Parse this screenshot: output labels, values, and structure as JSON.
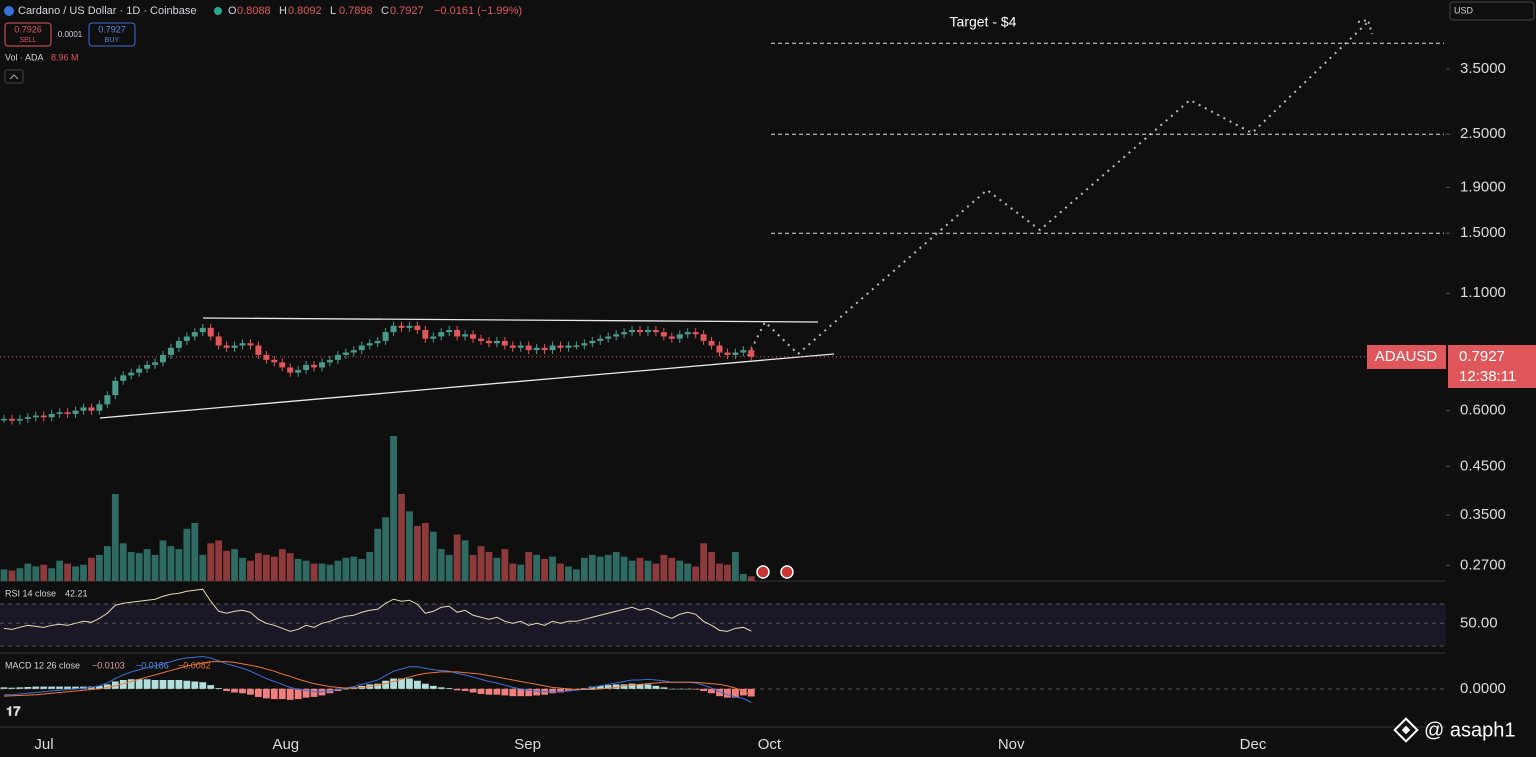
{
  "header": {
    "symbol": "Cardano / US Dollar · 1D · Coinbase",
    "ohlc": [
      {
        "key": "O",
        "value": "0.8088"
      },
      {
        "key": "H",
        "value": "0.8092"
      },
      {
        "key": "L",
        "value": "0.7898"
      },
      {
        "key": "C",
        "value": "0.7927"
      }
    ],
    "change": "−0.0161 (−1.99%)",
    "sell": {
      "price": "0.7926",
      "label": "SELL"
    },
    "spread": "0.0001",
    "buy": {
      "price": "0.7927",
      "label": "BUY"
    },
    "volume": {
      "label": "Vol · ADA",
      "value": "8.96 M"
    },
    "currency": "USD"
  },
  "price_tag": {
    "symbol": "ADAUSD",
    "price": "0.7927",
    "countdown": "12:38:11"
  },
  "watermark": "@ asaph1",
  "chart_data": {
    "type": "candlestick",
    "log_scale": true,
    "ylim": [
      0.249,
      5.0
    ],
    "yticks": [
      {
        "value": 3.5,
        "label": "3.5000"
      },
      {
        "value": 2.5,
        "label": "2.5000"
      },
      {
        "value": 1.9,
        "label": "1.9000"
      },
      {
        "value": 1.5,
        "label": "1.5000"
      },
      {
        "value": 1.1,
        "label": "1.1000"
      },
      {
        "value": 0.6,
        "label": "0.6000"
      },
      {
        "value": 0.45,
        "label": "0.4500"
      },
      {
        "value": 0.35,
        "label": "0.3500"
      },
      {
        "value": 0.27,
        "label": "0.2700"
      }
    ],
    "xticks": [
      "Jul",
      "Aug",
      "Sep",
      "Oct",
      "Nov",
      "Dec"
    ],
    "annotation": "Target - $4",
    "levels": [
      4,
      2.5,
      1.5
    ],
    "last_price": 0.7927,
    "up_color": "#4c9a8a",
    "down_color": "#e0575b",
    "closes": [
      0.575,
      0.57,
      0.575,
      0.58,
      0.585,
      0.58,
      0.59,
      0.595,
      0.59,
      0.6,
      0.61,
      0.6,
      0.62,
      0.65,
      0.7,
      0.72,
      0.73,
      0.745,
      0.76,
      0.77,
      0.8,
      0.83,
      0.86,
      0.88,
      0.9,
      0.92,
      0.88,
      0.84,
      0.83,
      0.84,
      0.85,
      0.84,
      0.8,
      0.78,
      0.77,
      0.75,
      0.73,
      0.74,
      0.76,
      0.75,
      0.77,
      0.78,
      0.8,
      0.81,
      0.82,
      0.84,
      0.85,
      0.86,
      0.9,
      0.93,
      0.92,
      0.93,
      0.91,
      0.87,
      0.88,
      0.9,
      0.91,
      0.88,
      0.89,
      0.87,
      0.86,
      0.85,
      0.86,
      0.84,
      0.83,
      0.84,
      0.82,
      0.83,
      0.82,
      0.84,
      0.83,
      0.84,
      0.84,
      0.85,
      0.86,
      0.87,
      0.88,
      0.89,
      0.9,
      0.91,
      0.9,
      0.91,
      0.9,
      0.88,
      0.87,
      0.89,
      0.9,
      0.89,
      0.86,
      0.84,
      0.81,
      0.8,
      0.81,
      0.82,
      0.7927
    ],
    "volumes": [
      20,
      18,
      22,
      30,
      25,
      28,
      22,
      35,
      30,
      25,
      28,
      40,
      45,
      60,
      150,
      65,
      50,
      48,
      55,
      45,
      70,
      60,
      55,
      90,
      100,
      45,
      65,
      70,
      52,
      55,
      40,
      35,
      48,
      45,
      42,
      55,
      48,
      38,
      35,
      30,
      30,
      28,
      35,
      40,
      42,
      38,
      50,
      90,
      110,
      250,
      150,
      120,
      95,
      100,
      85,
      55,
      45,
      80,
      70,
      45,
      60,
      50,
      40,
      55,
      30,
      28,
      50,
      45,
      38,
      42,
      30,
      25,
      20,
      40,
      45,
      42,
      45,
      50,
      42,
      35,
      40,
      35,
      30,
      45,
      40,
      35,
      30,
      25,
      65,
      50,
      30,
      28,
      50,
      12,
      8
    ],
    "rsi": {
      "label": "RSI 14 close",
      "last": "42.21",
      "ylim": [
        21.4,
        85.2
      ],
      "yticks": [
        {
          "value": 50,
          "label": "50.00"
        }
      ],
      "values": [
        45,
        44,
        46,
        48,
        47,
        46,
        48,
        49,
        48,
        50,
        52,
        51,
        55,
        60,
        68,
        70,
        71,
        72,
        73,
        74,
        77,
        79,
        80,
        82,
        83,
        84,
        72,
        62,
        60,
        62,
        63,
        61,
        54,
        50,
        48,
        45,
        42,
        44,
        48,
        46,
        50,
        52,
        55,
        57,
        58,
        61,
        63,
        64,
        70,
        74,
        72,
        73,
        69,
        60,
        62,
        66,
        67,
        61,
        63,
        58,
        56,
        54,
        56,
        52,
        50,
        52,
        48,
        50,
        48,
        52,
        50,
        52,
        52,
        54,
        56,
        58,
        60,
        62,
        64,
        66,
        63,
        65,
        62,
        58,
        55,
        59,
        61,
        59,
        52,
        48,
        43,
        42,
        45,
        46,
        42.21
      ]
    },
    "macd": {
      "label": "MACD 12 26 close",
      "hist_last": "−0.0103",
      "macd_last": "−0.0186",
      "signal_last": "−0.0082",
      "ylim": [
        -0.022,
        0.046
      ],
      "yticks": [
        {
          "value": 0,
          "label": "0.0000"
        }
      ],
      "macd": [
        -0.008,
        -0.008,
        -0.007,
        -0.006,
        -0.005,
        -0.004,
        -0.003,
        -0.002,
        -0.001,
        0.0,
        0.001,
        0.002,
        0.004,
        0.008,
        0.014,
        0.019,
        0.023,
        0.026,
        0.029,
        0.031,
        0.034,
        0.037,
        0.04,
        0.042,
        0.043,
        0.044,
        0.042,
        0.038,
        0.034,
        0.031,
        0.028,
        0.024,
        0.019,
        0.014,
        0.01,
        0.006,
        0.002,
        -0.001,
        -0.002,
        -0.004,
        -0.004,
        -0.003,
        -0.001,
        0.001,
        0.003,
        0.006,
        0.009,
        0.012,
        0.018,
        0.024,
        0.027,
        0.03,
        0.03,
        0.028,
        0.026,
        0.025,
        0.024,
        0.021,
        0.019,
        0.016,
        0.013,
        0.01,
        0.008,
        0.005,
        0.002,
        0.0,
        -0.002,
        -0.003,
        -0.004,
        -0.004,
        -0.004,
        -0.003,
        -0.002,
        0.0,
        0.002,
        0.004,
        0.006,
        0.008,
        0.01,
        0.012,
        0.012,
        0.013,
        0.012,
        0.011,
        0.009,
        0.009,
        0.009,
        0.008,
        0.005,
        0.001,
        -0.004,
        -0.008,
        -0.011,
        -0.013,
        -0.0186
      ],
      "signal": [
        -0.01,
        -0.0095,
        -0.009,
        -0.0085,
        -0.008,
        -0.007,
        -0.006,
        -0.005,
        -0.004,
        -0.003,
        -0.002,
        -0.001,
        0.0,
        0.002,
        0.004,
        0.007,
        0.01,
        0.013,
        0.016,
        0.019,
        0.022,
        0.025,
        0.028,
        0.031,
        0.033,
        0.035,
        0.037,
        0.037,
        0.037,
        0.036,
        0.034,
        0.032,
        0.03,
        0.027,
        0.024,
        0.02,
        0.017,
        0.013,
        0.01,
        0.007,
        0.005,
        0.003,
        0.002,
        0.001,
        0.001,
        0.002,
        0.003,
        0.005,
        0.007,
        0.01,
        0.013,
        0.016,
        0.019,
        0.021,
        0.022,
        0.023,
        0.023,
        0.023,
        0.022,
        0.021,
        0.02,
        0.018,
        0.016,
        0.014,
        0.012,
        0.01,
        0.008,
        0.006,
        0.004,
        0.002,
        0.001,
        0.0,
        -0.001,
        -0.001,
        -0.001,
        0.0,
        0.001,
        0.002,
        0.004,
        0.005,
        0.006,
        0.007,
        0.008,
        0.009,
        0.009,
        0.009,
        0.009,
        0.009,
        0.008,
        0.007,
        0.006,
        0.004,
        0.001,
        -0.004,
        -0.0082
      ]
    }
  }
}
